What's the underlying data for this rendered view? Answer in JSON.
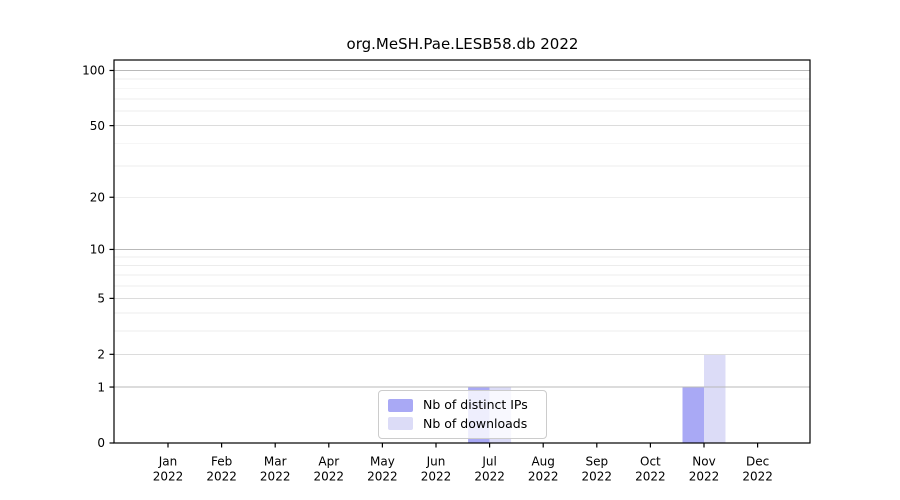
{
  "chart_data": {
    "type": "bar",
    "title": "org.MeSH.Pae.LESB58.db 2022",
    "categories": [
      "Jan",
      "Feb",
      "Mar",
      "Apr",
      "May",
      "Jun",
      "Jul",
      "Aug",
      "Sep",
      "Oct",
      "Nov",
      "Dec"
    ],
    "category_year": "2022",
    "series": [
      {
        "name": "Nb of distinct IPs",
        "color": "#a9a9f5",
        "values": [
          0,
          0,
          0,
          0,
          0,
          0,
          1,
          0,
          0,
          0,
          1,
          0
        ]
      },
      {
        "name": "Nb of downloads",
        "color": "#dcdcf7",
        "values": [
          0,
          0,
          0,
          0,
          0,
          0,
          1,
          0,
          0,
          0,
          2,
          0
        ]
      }
    ],
    "yscale": "log1p",
    "ylim": [
      0,
      100
    ],
    "yticks": [
      0,
      1,
      2,
      5,
      10,
      20,
      50,
      100
    ],
    "minor_yticks": [
      3,
      4,
      6,
      7,
      8,
      9,
      30,
      40,
      60,
      70,
      80,
      90
    ],
    "grid": true,
    "legend_position": "lower center",
    "background_color": "#ffffff",
    "axis_color": "#000000"
  }
}
